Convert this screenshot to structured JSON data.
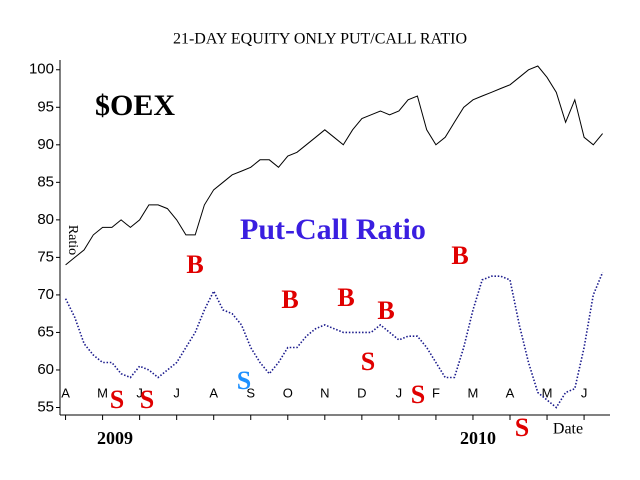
{
  "chart_data": {
    "type": "line",
    "title": "21-DAY EQUITY ONLY PUT/CALL RATIO",
    "x_label": "Date",
    "y_label": "Ratio",
    "year_labels": [
      "2009",
      "2010"
    ],
    "x": [
      0,
      0.25,
      0.5,
      0.75,
      1,
      1.25,
      1.5,
      1.75,
      2,
      2.25,
      2.5,
      2.75,
      3,
      3.25,
      3.5,
      3.75,
      4,
      4.25,
      4.5,
      4.75,
      5,
      5.25,
      5.5,
      5.75,
      6,
      6.25,
      6.5,
      6.75,
      7,
      7.25,
      7.5,
      7.75,
      8,
      8.25,
      8.5,
      8.75,
      9,
      9.25,
      9.5,
      9.75,
      10,
      10.25,
      10.5,
      10.75,
      11,
      11.25,
      11.5,
      11.75,
      12,
      12.25,
      12.5,
      12.75,
      13,
      13.25,
      13.5,
      13.75,
      14,
      14.25,
      14.5
    ],
    "xlim": [
      -0.15,
      14.7
    ],
    "xticks": [
      {
        "value": 0,
        "label": "A"
      },
      {
        "value": 1,
        "label": "M"
      },
      {
        "value": 2,
        "label": "J"
      },
      {
        "value": 3,
        "label": "J"
      },
      {
        "value": 4,
        "label": "A"
      },
      {
        "value": 5,
        "label": "S"
      },
      {
        "value": 6,
        "label": "O"
      },
      {
        "value": 7,
        "label": "N"
      },
      {
        "value": 8,
        "label": "D"
      },
      {
        "value": 9,
        "label": "J"
      },
      {
        "value": 10,
        "label": "F"
      },
      {
        "value": 11,
        "label": "M"
      },
      {
        "value": 12,
        "label": "A"
      },
      {
        "value": 13,
        "label": "M"
      },
      {
        "value": 14,
        "label": "J"
      }
    ],
    "ylim": [
      54,
      101.3
    ],
    "yticks": [
      55,
      60,
      65,
      70,
      75,
      80,
      85,
      90,
      95,
      100
    ],
    "series": [
      {
        "name": "$OEX",
        "color": "#000000",
        "dotted": false,
        "values": [
          74,
          75,
          76,
          78,
          79,
          79,
          80,
          79,
          80,
          82,
          82,
          81.5,
          80,
          78,
          78,
          82,
          84,
          85,
          86,
          86.5,
          87,
          88,
          88,
          87,
          88.5,
          89,
          90,
          91,
          92,
          91,
          90,
          92,
          93.5,
          94,
          94.5,
          94,
          94.5,
          96,
          96.5,
          92,
          90,
          91,
          93,
          95,
          96,
          96.5,
          97,
          97.5,
          98,
          99,
          100,
          100.5,
          99,
          97,
          93,
          96,
          91,
          90,
          91.5
        ]
      },
      {
        "name": "Put-Call Ratio",
        "color": "#1a1a8c",
        "label_color": "#3a1ee0",
        "dotted": true,
        "values": [
          69.5,
          67,
          63.5,
          62,
          61,
          61,
          59.5,
          59,
          60.5,
          60,
          59,
          60,
          61,
          63,
          65,
          68,
          70.5,
          68,
          67.5,
          66,
          63,
          61,
          59.5,
          61,
          63,
          63,
          64.5,
          65.5,
          66,
          65.5,
          65,
          65,
          65,
          65,
          66,
          65,
          64,
          64.5,
          64.5,
          63,
          61,
          59,
          59,
          63,
          68,
          72,
          72.5,
          72.5,
          72,
          66,
          61,
          57,
          56,
          55,
          57,
          57.5,
          63,
          70,
          73
        ]
      }
    ],
    "annotations": [
      {
        "text": "B",
        "color": "#e00000"
      },
      {
        "text": "S",
        "color": "#e00000"
      },
      {
        "text": "S",
        "color": "#e00000"
      },
      {
        "text": "S",
        "color": "#1e90ff"
      },
      {
        "text": "B",
        "color": "#e00000"
      },
      {
        "text": "B",
        "color": "#e00000"
      },
      {
        "text": "B",
        "color": "#e00000"
      },
      {
        "text": "S",
        "color": "#e00000"
      },
      {
        "text": "S",
        "color": "#e00000"
      },
      {
        "text": "B",
        "color": "#e00000"
      },
      {
        "text": "S",
        "color": "#e00000"
      }
    ]
  }
}
